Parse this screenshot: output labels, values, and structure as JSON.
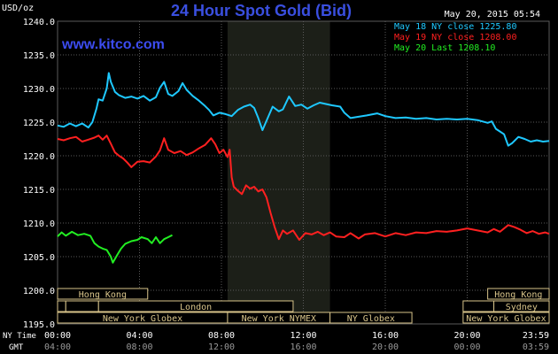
{
  "header": {
    "title": "24 Hour Spot Gold (Bid)",
    "units": "USD/oz",
    "timestamp": "May 20, 2015 05:54",
    "watermark": "www.kitco.com"
  },
  "colors": {
    "background": "#000000",
    "grid": "#5a5a5a",
    "title": "#3a4fe0",
    "watermark": "#3c4cf0",
    "axis_text": "#ffffff",
    "nymex_shade": "#1c1f18",
    "session_box": "#d8c48a",
    "may18": "#1ec8ff",
    "may19": "#ff2020",
    "may20": "#22ee22"
  },
  "legend": [
    {
      "text": "May 18 NY close 1225.80",
      "color": "#1ec8ff"
    },
    {
      "text": "May 19 NY close 1208.00",
      "color": "#ff2020"
    },
    {
      "text": "May 20 Last 1208.10",
      "color": "#22ee22"
    }
  ],
  "axis_rows": {
    "ny_label": "NY Time",
    "gmt_label": "GMT"
  },
  "sessions": {
    "row1": [
      {
        "label": "Hong Kong",
        "start_h": 0.0,
        "end_h": 4.4
      },
      {
        "label": "Hong Kong",
        "start_h": 21.0,
        "end_h": 24.0
      }
    ],
    "row2": [
      {
        "label": "",
        "start_h": 0.0,
        "end_h": 0.4
      },
      {
        "label": "",
        "start_h": 0.4,
        "end_h": 2.0
      },
      {
        "label": "London",
        "start_h": 2.0,
        "end_h": 11.5
      },
      {
        "label": "",
        "start_h": 19.8,
        "end_h": 21.3
      },
      {
        "label": "Sydney",
        "start_h": 21.3,
        "end_h": 24.0
      }
    ],
    "row3": [
      {
        "label": "New York Globex",
        "start_h": 0.0,
        "end_h": 8.3
      },
      {
        "label": "New York NYMEX",
        "start_h": 8.3,
        "end_h": 13.3
      },
      {
        "label": "NY Globex",
        "start_h": 13.3,
        "end_h": 17.3
      },
      {
        "label": "New York Globex",
        "start_h": 19.8,
        "end_h": 24.0
      }
    ]
  },
  "chart_data": {
    "type": "line",
    "title": "24 Hour Spot Gold (Bid)",
    "ylabel": "USD/oz",
    "xlabel": "NY Time",
    "ylim": [
      1195,
      1240
    ],
    "xlim_hours": [
      0,
      24
    ],
    "yticks": [
      "1195.0",
      "1200.0",
      "1205.0",
      "1210.0",
      "1215.0",
      "1220.0",
      "1225.0",
      "1230.0",
      "1235.0",
      "1240.0"
    ],
    "xticks_ny": [
      "00:00",
      "04:00",
      "08:00",
      "12:00",
      "16:00",
      "20:00",
      "23:59"
    ],
    "xticks_gmt": [
      "04:00",
      "08:00",
      "12:00",
      "16:00",
      "20:00",
      "00:00",
      "03:59"
    ],
    "xtick_hours": [
      0,
      4,
      8,
      12,
      16,
      20,
      24
    ],
    "nymex_shade_hours": [
      8.3,
      13.3
    ],
    "grid": true,
    "legend_position": "top-right",
    "series": [
      {
        "name": "May 18 NY close 1225.80",
        "color": "#1ec8ff",
        "points": [
          [
            0.0,
            1224.5
          ],
          [
            0.3,
            1224.3
          ],
          [
            0.6,
            1224.8
          ],
          [
            0.9,
            1224.4
          ],
          [
            1.2,
            1224.8
          ],
          [
            1.5,
            1224.2
          ],
          [
            1.7,
            1225.0
          ],
          [
            1.9,
            1227.0
          ],
          [
            2.0,
            1228.4
          ],
          [
            2.2,
            1228.2
          ],
          [
            2.4,
            1230.0
          ],
          [
            2.5,
            1232.3
          ],
          [
            2.6,
            1231.0
          ],
          [
            2.8,
            1229.5
          ],
          [
            3.0,
            1229.0
          ],
          [
            3.3,
            1228.6
          ],
          [
            3.6,
            1228.8
          ],
          [
            3.9,
            1228.5
          ],
          [
            4.2,
            1228.9
          ],
          [
            4.5,
            1228.2
          ],
          [
            4.8,
            1228.7
          ],
          [
            5.0,
            1230.1
          ],
          [
            5.2,
            1231.0
          ],
          [
            5.4,
            1229.2
          ],
          [
            5.6,
            1228.9
          ],
          [
            5.9,
            1229.6
          ],
          [
            6.1,
            1230.8
          ],
          [
            6.3,
            1229.8
          ],
          [
            6.6,
            1228.9
          ],
          [
            6.9,
            1228.2
          ],
          [
            7.2,
            1227.4
          ],
          [
            7.4,
            1226.8
          ],
          [
            7.6,
            1226.0
          ],
          [
            7.9,
            1226.4
          ],
          [
            8.2,
            1226.2
          ],
          [
            8.5,
            1225.9
          ],
          [
            8.8,
            1226.8
          ],
          [
            9.1,
            1227.3
          ],
          [
            9.4,
            1227.6
          ],
          [
            9.6,
            1227.1
          ],
          [
            9.8,
            1225.6
          ],
          [
            10.0,
            1223.8
          ],
          [
            10.2,
            1225.2
          ],
          [
            10.5,
            1227.3
          ],
          [
            10.8,
            1226.6
          ],
          [
            11.0,
            1226.9
          ],
          [
            11.3,
            1228.8
          ],
          [
            11.6,
            1227.4
          ],
          [
            11.9,
            1227.6
          ],
          [
            12.2,
            1227.0
          ],
          [
            12.5,
            1227.5
          ],
          [
            12.8,
            1227.9
          ],
          [
            13.1,
            1227.7
          ],
          [
            13.4,
            1227.5
          ],
          [
            13.8,
            1227.3
          ],
          [
            14.0,
            1226.4
          ],
          [
            14.3,
            1225.6
          ],
          [
            14.7,
            1225.8
          ],
          [
            15.1,
            1226.0
          ],
          [
            15.6,
            1226.3
          ],
          [
            16.0,
            1225.9
          ],
          [
            16.5,
            1225.6
          ],
          [
            17.0,
            1225.7
          ],
          [
            17.5,
            1225.5
          ],
          [
            18.0,
            1225.6
          ],
          [
            18.5,
            1225.4
          ],
          [
            19.0,
            1225.5
          ],
          [
            19.5,
            1225.4
          ],
          [
            20.0,
            1225.5
          ],
          [
            20.5,
            1225.3
          ],
          [
            21.0,
            1224.9
          ],
          [
            21.2,
            1225.1
          ],
          [
            21.4,
            1224.0
          ],
          [
            21.6,
            1223.6
          ],
          [
            21.8,
            1223.2
          ],
          [
            22.0,
            1221.5
          ],
          [
            22.2,
            1221.9
          ],
          [
            22.5,
            1222.8
          ],
          [
            22.8,
            1222.5
          ],
          [
            23.1,
            1222.1
          ],
          [
            23.4,
            1222.3
          ],
          [
            23.7,
            1222.1
          ],
          [
            24.0,
            1222.2
          ]
        ]
      },
      {
        "name": "May 19 NY close 1208.00",
        "color": "#ff2020",
        "points": [
          [
            0.0,
            1222.5
          ],
          [
            0.3,
            1222.3
          ],
          [
            0.6,
            1222.6
          ],
          [
            0.9,
            1222.8
          ],
          [
            1.2,
            1222.1
          ],
          [
            1.5,
            1222.4
          ],
          [
            1.8,
            1222.7
          ],
          [
            2.0,
            1223.0
          ],
          [
            2.2,
            1222.4
          ],
          [
            2.4,
            1223.0
          ],
          [
            2.6,
            1221.8
          ],
          [
            2.8,
            1220.5
          ],
          [
            3.0,
            1220.0
          ],
          [
            3.2,
            1219.6
          ],
          [
            3.4,
            1219.0
          ],
          [
            3.6,
            1218.3
          ],
          [
            3.9,
            1219.1
          ],
          [
            4.2,
            1219.2
          ],
          [
            4.5,
            1219.0
          ],
          [
            4.8,
            1219.9
          ],
          [
            5.0,
            1220.8
          ],
          [
            5.2,
            1222.6
          ],
          [
            5.4,
            1220.9
          ],
          [
            5.7,
            1220.4
          ],
          [
            6.0,
            1220.7
          ],
          [
            6.3,
            1220.1
          ],
          [
            6.6,
            1220.5
          ],
          [
            6.9,
            1221.1
          ],
          [
            7.2,
            1221.6
          ],
          [
            7.5,
            1222.6
          ],
          [
            7.7,
            1221.7
          ],
          [
            7.9,
            1220.4
          ],
          [
            8.1,
            1220.9
          ],
          [
            8.3,
            1219.8
          ],
          [
            8.4,
            1220.9
          ],
          [
            8.5,
            1216.8
          ],
          [
            8.6,
            1215.4
          ],
          [
            8.8,
            1214.8
          ],
          [
            9.0,
            1214.3
          ],
          [
            9.2,
            1215.6
          ],
          [
            9.4,
            1215.1
          ],
          [
            9.6,
            1215.4
          ],
          [
            9.8,
            1214.7
          ],
          [
            10.0,
            1215.0
          ],
          [
            10.2,
            1213.8
          ],
          [
            10.4,
            1211.5
          ],
          [
            10.6,
            1209.4
          ],
          [
            10.8,
            1207.6
          ],
          [
            11.0,
            1208.9
          ],
          [
            11.2,
            1208.4
          ],
          [
            11.5,
            1208.9
          ],
          [
            11.8,
            1207.5
          ],
          [
            12.1,
            1208.5
          ],
          [
            12.4,
            1208.3
          ],
          [
            12.7,
            1208.7
          ],
          [
            13.0,
            1208.2
          ],
          [
            13.3,
            1208.6
          ],
          [
            13.6,
            1208.0
          ],
          [
            14.0,
            1207.9
          ],
          [
            14.3,
            1208.5
          ],
          [
            14.7,
            1207.7
          ],
          [
            15.0,
            1208.3
          ],
          [
            15.5,
            1208.5
          ],
          [
            16.0,
            1208.0
          ],
          [
            16.5,
            1208.5
          ],
          [
            17.0,
            1208.2
          ],
          [
            17.5,
            1208.6
          ],
          [
            18.0,
            1208.5
          ],
          [
            18.5,
            1208.8
          ],
          [
            19.0,
            1208.7
          ],
          [
            19.5,
            1208.9
          ],
          [
            20.0,
            1209.2
          ],
          [
            20.5,
            1208.9
          ],
          [
            21.0,
            1208.6
          ],
          [
            21.3,
            1209.1
          ],
          [
            21.6,
            1208.7
          ],
          [
            22.0,
            1209.7
          ],
          [
            22.3,
            1209.4
          ],
          [
            22.6,
            1209.0
          ],
          [
            22.9,
            1208.5
          ],
          [
            23.2,
            1208.8
          ],
          [
            23.5,
            1208.4
          ],
          [
            23.8,
            1208.6
          ],
          [
            24.0,
            1208.4
          ]
        ]
      },
      {
        "name": "May 20 Last 1208.10",
        "color": "#22ee22",
        "points": [
          [
            0.0,
            1208.0
          ],
          [
            0.2,
            1208.6
          ],
          [
            0.4,
            1208.1
          ],
          [
            0.7,
            1208.7
          ],
          [
            1.0,
            1208.2
          ],
          [
            1.3,
            1208.4
          ],
          [
            1.6,
            1208.1
          ],
          [
            1.8,
            1207.0
          ],
          [
            2.0,
            1206.5
          ],
          [
            2.2,
            1206.2
          ],
          [
            2.4,
            1206.0
          ],
          [
            2.6,
            1205.0
          ],
          [
            2.7,
            1204.1
          ],
          [
            2.9,
            1205.2
          ],
          [
            3.1,
            1206.2
          ],
          [
            3.3,
            1206.9
          ],
          [
            3.6,
            1207.3
          ],
          [
            3.9,
            1207.5
          ],
          [
            4.1,
            1207.9
          ],
          [
            4.4,
            1207.6
          ],
          [
            4.6,
            1207.0
          ],
          [
            4.8,
            1207.9
          ],
          [
            5.0,
            1207.0
          ],
          [
            5.2,
            1207.6
          ],
          [
            5.4,
            1207.9
          ],
          [
            5.6,
            1208.2
          ]
        ]
      }
    ]
  }
}
